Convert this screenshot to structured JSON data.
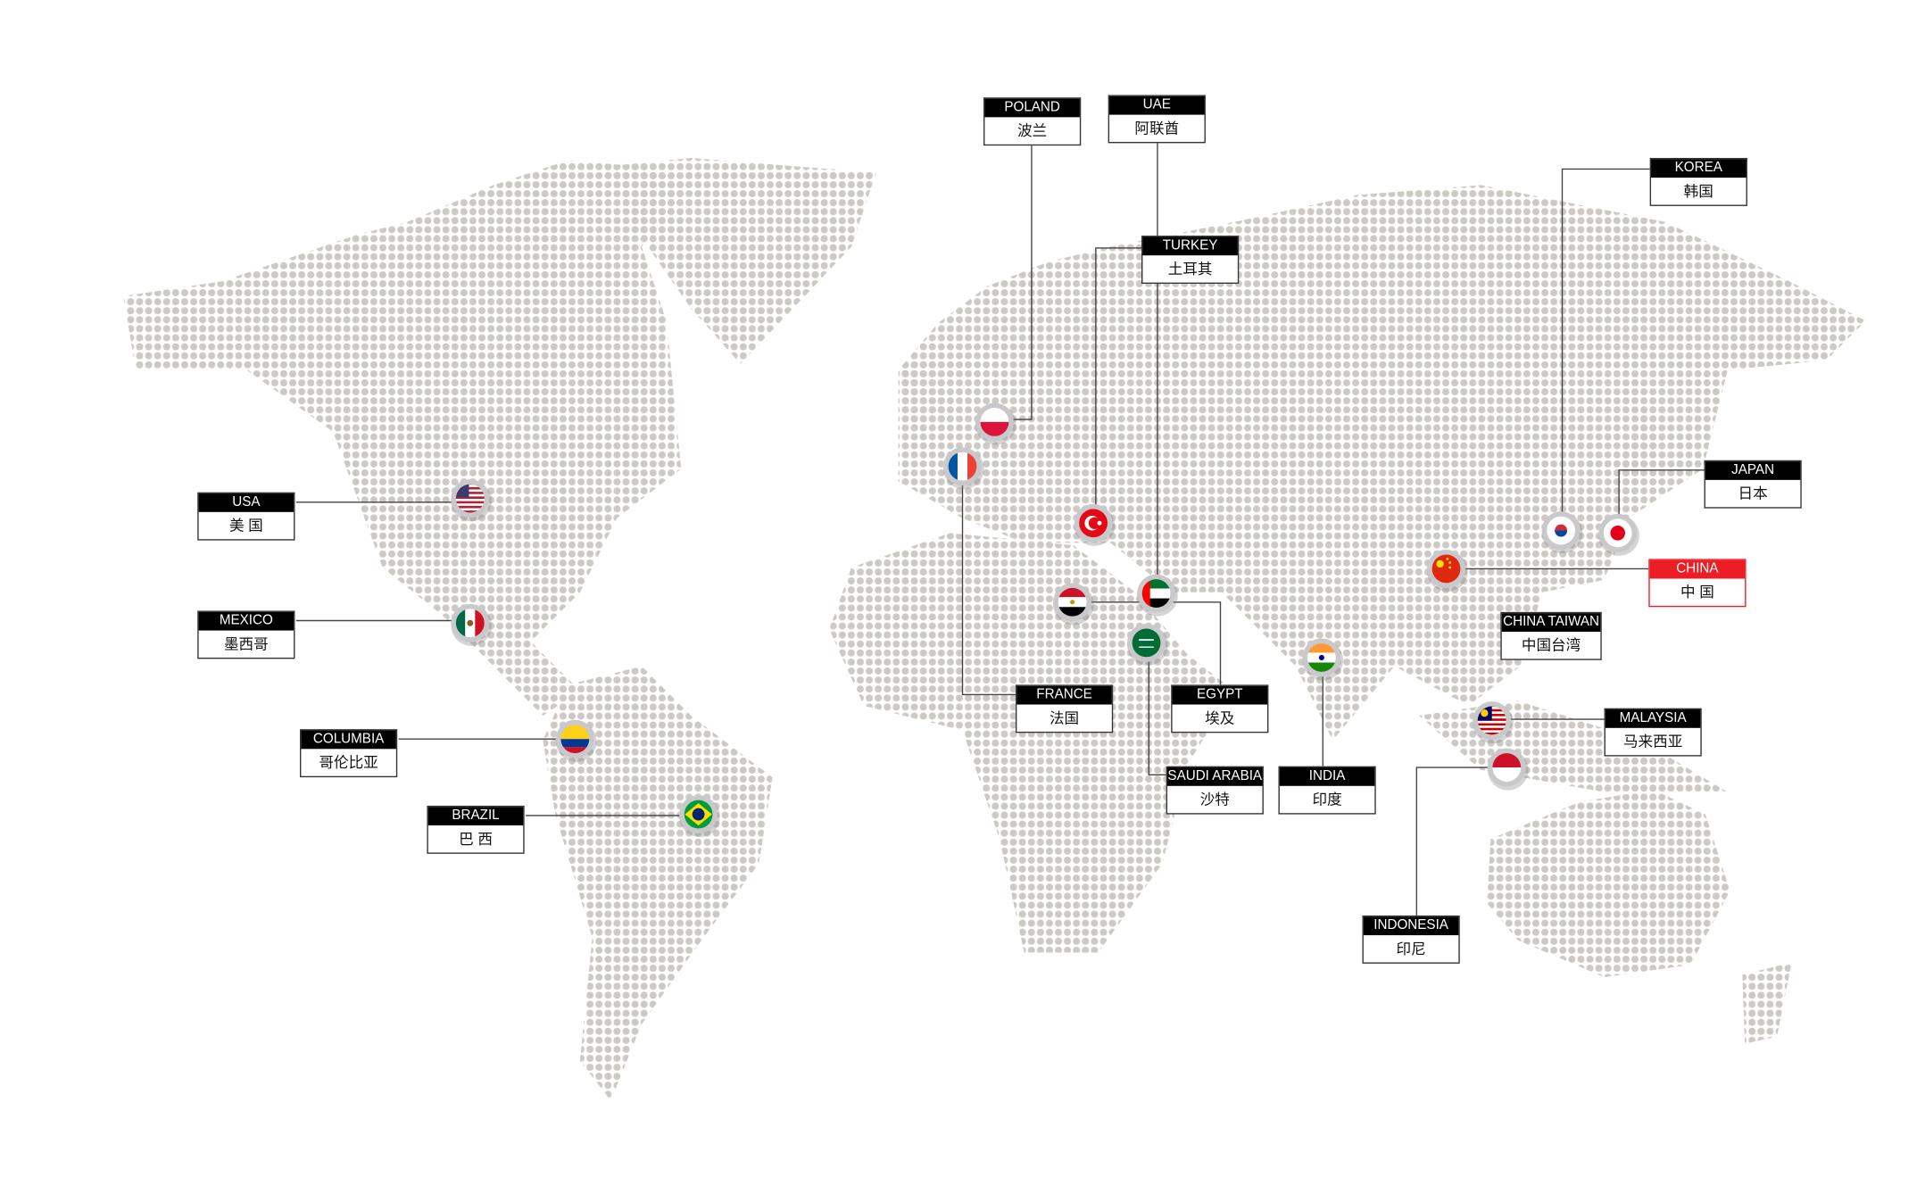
{
  "colors": {
    "dot": "#cdcac5",
    "label_header": "#000000",
    "highlight": "#ee1c25",
    "line": "#444444"
  },
  "locations": [
    {
      "id": "usa",
      "en": "USA",
      "zh": "美 国",
      "flag": "usa-flag-icon"
    },
    {
      "id": "mexico",
      "en": "MEXICO",
      "zh": "墨西哥",
      "flag": "mexico-flag-icon"
    },
    {
      "id": "columbia",
      "en": "COLUMBIA",
      "zh": "哥伦比亚",
      "flag": "colombia-flag-icon"
    },
    {
      "id": "brazil",
      "en": "BRAZIL",
      "zh": "巴 西",
      "flag": "brazil-flag-icon"
    },
    {
      "id": "poland",
      "en": "POLAND",
      "zh": "波兰",
      "flag": "poland-flag-icon"
    },
    {
      "id": "uae",
      "en": "UAE",
      "zh": "阿联酋",
      "flag": "uae-flag-icon"
    },
    {
      "id": "turkey",
      "en": "TURKEY",
      "zh": "土耳其",
      "flag": "turkey-flag-icon"
    },
    {
      "id": "korea",
      "en": "KOREA",
      "zh": "韩国",
      "flag": "korea-flag-icon"
    },
    {
      "id": "japan",
      "en": "JAPAN",
      "zh": "日本",
      "flag": "japan-flag-icon"
    },
    {
      "id": "china",
      "en": "CHINA",
      "zh": "中 国",
      "flag": "china-flag-icon",
      "highlight": true
    },
    {
      "id": "taiwan",
      "en": "CHINA TAIWAN",
      "zh": "中国台湾"
    },
    {
      "id": "malaysia",
      "en": "MALAYSIA",
      "zh": "马来西亚",
      "flag": "malaysia-flag-icon"
    },
    {
      "id": "indonesia",
      "en": "INDONESIA",
      "zh": "印尼",
      "flag": "indonesia-flag-icon"
    },
    {
      "id": "france",
      "en": "FRANCE",
      "zh": "法国",
      "flag": "france-flag-icon"
    },
    {
      "id": "egypt",
      "en": "EGYPT",
      "zh": "埃及",
      "flag": "egypt-flag-icon"
    },
    {
      "id": "saudi",
      "en": "SAUDI ARABIA",
      "zh": "沙特",
      "flag": "saudi-flag-icon"
    },
    {
      "id": "india",
      "en": "INDIA",
      "zh": "印度",
      "flag": "india-flag-icon"
    }
  ]
}
